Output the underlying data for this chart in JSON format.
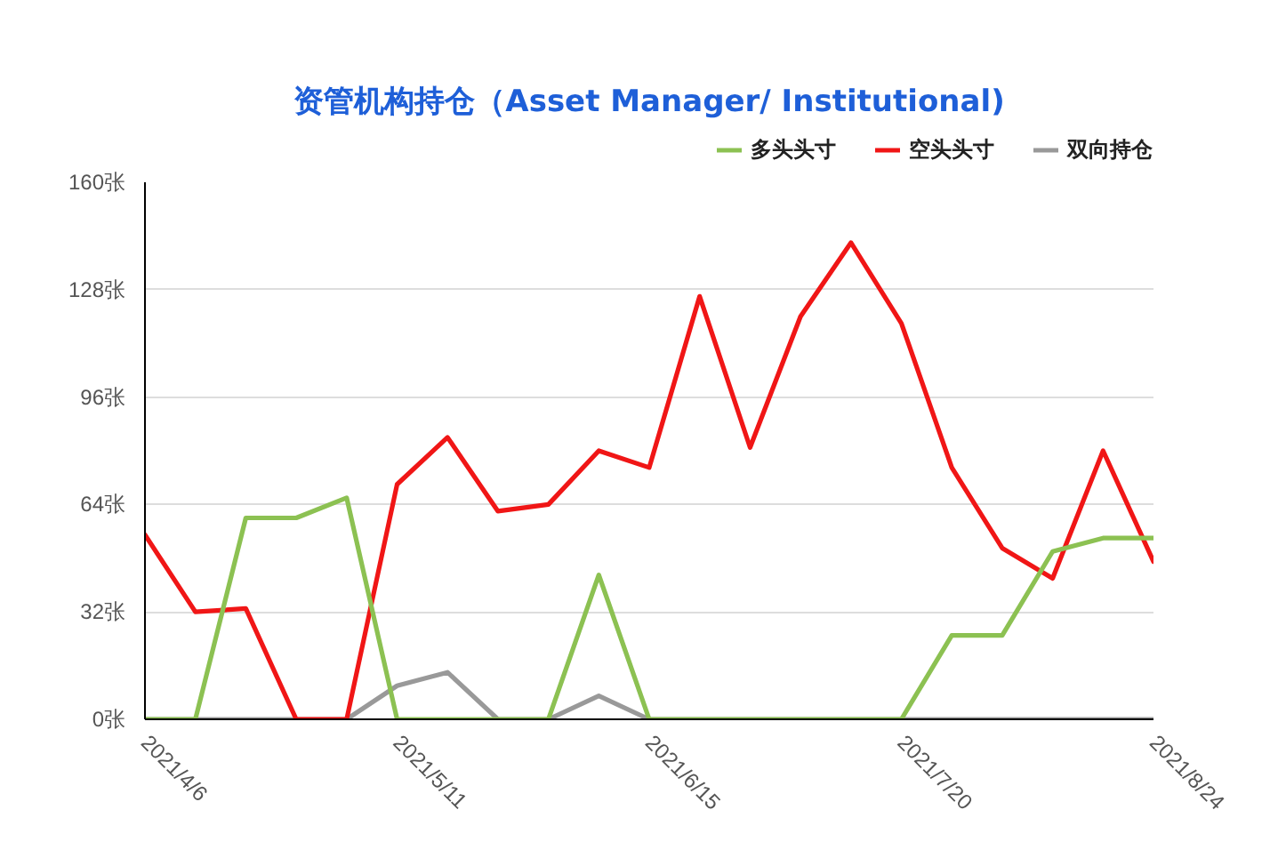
{
  "chart_data": {
    "type": "line",
    "title": "资管机构持仓（Asset Manager/ Institutional)",
    "categories": [
      "2021/4/6",
      null,
      null,
      null,
      null,
      "2021/5/11",
      null,
      null,
      null,
      null,
      "2021/6/15",
      null,
      null,
      null,
      null,
      "2021/7/20",
      null,
      null,
      null,
      null,
      "2021/8/24"
    ],
    "series": [
      {
        "name": "多头头寸",
        "color": "#8cc152",
        "values": [
          0,
          0,
          60,
          60,
          66,
          0,
          0,
          0,
          0,
          43,
          0,
          0,
          0,
          0,
          0,
          0,
          25,
          25,
          50,
          54,
          54
        ]
      },
      {
        "name": "空头头寸",
        "color": "#f01616",
        "values": [
          55,
          32,
          33,
          0,
          0,
          70,
          84,
          62,
          64,
          80,
          75,
          126,
          81,
          120,
          142,
          118,
          75,
          51,
          42,
          80,
          47
        ]
      },
      {
        "name": "双向持仓",
        "color": "#999999",
        "values": [
          0,
          0,
          0,
          0,
          0,
          10,
          14,
          0,
          0,
          7,
          0,
          0,
          0,
          0,
          0,
          0,
          0,
          0,
          0,
          0,
          0
        ]
      }
    ],
    "ylim": [
      0,
      160
    ],
    "yticks": [
      {
        "value": 0,
        "label": "0张"
      },
      {
        "value": 32,
        "label": "32张"
      },
      {
        "value": 64,
        "label": "64张"
      },
      {
        "value": 96,
        "label": "96张"
      },
      {
        "value": 128,
        "label": "128张"
      },
      {
        "value": 160,
        "label": "160张"
      }
    ],
    "grid": "y",
    "legend": "top right",
    "marker": "none",
    "line_style": "solid"
  }
}
